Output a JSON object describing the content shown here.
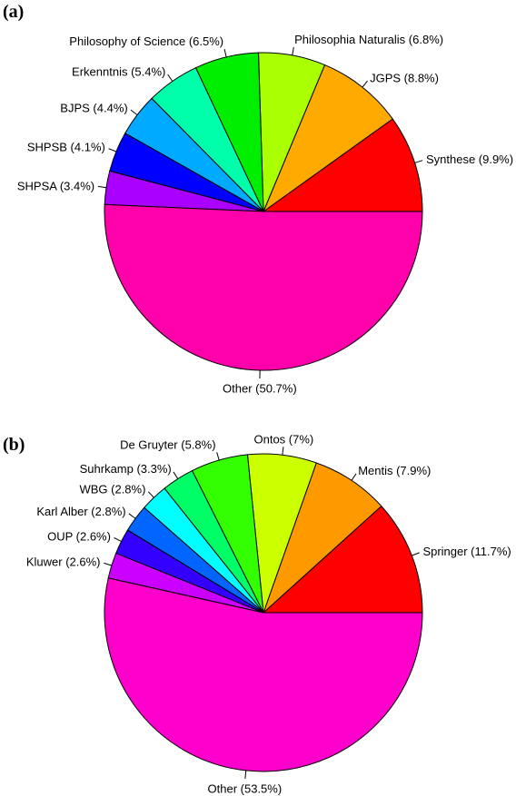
{
  "chart_data": [
    {
      "type": "pie",
      "panel_label": "(a)",
      "start_angle_deg": 0,
      "direction": "counterclockwise",
      "slices": [
        {
          "label": "Synthese (9.9%)",
          "value": 9.9,
          "color": "#ff0000"
        },
        {
          "label": "JGPS (8.8%)",
          "value": 8.8,
          "color": "#ffaa00"
        },
        {
          "label": "Philosophia Naturalis (6.8%)",
          "value": 6.8,
          "color": "#aaff00"
        },
        {
          "label": "Philosophy of Science (6.5%)",
          "value": 6.5,
          "color": "#00ee00"
        },
        {
          "label": "Erkenntnis (5.4%)",
          "value": 5.4,
          "color": "#00ffaa"
        },
        {
          "label": "BJPS (4.4%)",
          "value": 4.4,
          "color": "#00aaff"
        },
        {
          "label": "SHPSB (4.1%)",
          "value": 4.1,
          "color": "#0000ff"
        },
        {
          "label": "SHPSA (3.4%)",
          "value": 3.4,
          "color": "#aa00ff"
        },
        {
          "label": "Other (50.7%)",
          "value": 50.7,
          "color": "#ff00aa"
        }
      ]
    },
    {
      "type": "pie",
      "panel_label": "(b)",
      "start_angle_deg": 0,
      "direction": "counterclockwise",
      "slices": [
        {
          "label": "Springer (11.7%)",
          "value": 11.7,
          "color": "#ff0000"
        },
        {
          "label": "Mentis (7.9%)",
          "value": 7.9,
          "color": "#ff9900"
        },
        {
          "label": "Ontos (7%)",
          "value": 7.0,
          "color": "#ccff00"
        },
        {
          "label": "De Gruyter (5.8%)",
          "value": 5.8,
          "color": "#33ff00"
        },
        {
          "label": "Suhrkamp (3.3%)",
          "value": 3.3,
          "color": "#00ff66"
        },
        {
          "label": "WBG (2.8%)",
          "value": 2.8,
          "color": "#00ffff"
        },
        {
          "label": "Karl Alber (2.8%)",
          "value": 2.8,
          "color": "#0066ff"
        },
        {
          "label": "OUP (2.6%)",
          "value": 2.6,
          "color": "#3300ff"
        },
        {
          "label": "Kluwer (2.6%)",
          "value": 2.6,
          "color": "#cc00ff"
        },
        {
          "label": "Other (53.5%)",
          "value": 53.5,
          "color": "#ff00cc"
        }
      ]
    }
  ]
}
